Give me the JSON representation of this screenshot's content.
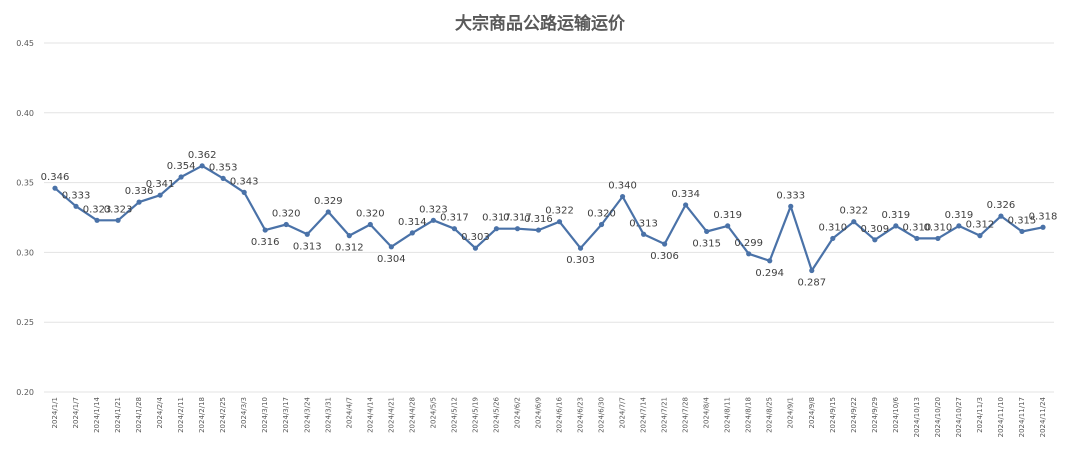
{
  "chart_data": {
    "type": "line",
    "title": "大宗商品公路运输运价",
    "xlabel": "",
    "ylabel": "",
    "ylim": [
      0.2,
      0.45
    ],
    "yticks": [
      "0.20",
      "0.25",
      "0.30",
      "0.35",
      "0.40",
      "0.45"
    ],
    "grid": true,
    "legend": "none",
    "color": "#4a72a8",
    "categories": [
      "2024/1/1",
      "2024/1/7",
      "2024/1/14",
      "2024/1/21",
      "2024/1/28",
      "2024/2/4",
      "2024/2/11",
      "2024/2/18",
      "2024/2/25",
      "2024/3/3",
      "2024/3/10",
      "2024/3/17",
      "2024/3/24",
      "2024/3/31",
      "2024/4/7",
      "2024/4/14",
      "2024/4/21",
      "2024/4/28",
      "2024/5/5",
      "2024/5/12",
      "2024/5/19",
      "2024/5/26",
      "2024/6/2",
      "2024/6/9",
      "2024/6/16",
      "2024/6/23",
      "2024/6/30",
      "2024/7/7",
      "2024/7/14",
      "2024/7/21",
      "2024/7/28",
      "2024/8/4",
      "2024/8/11",
      "2024/8/18",
      "2024/8/25",
      "2024/9/1",
      "2024/9/8",
      "2024/9/15",
      "2024/9/22",
      "2024/9/29",
      "2024/10/6",
      "2024/10/13",
      "2024/10/20",
      "2024/10/27",
      "2024/11/3",
      "2024/11/10",
      "2024/11/17",
      "2024/11/24"
    ],
    "values": [
      0.346,
      0.333,
      0.323,
      0.323,
      0.336,
      0.341,
      0.354,
      0.362,
      0.353,
      0.343,
      0.316,
      0.32,
      0.313,
      0.329,
      0.312,
      0.32,
      0.304,
      0.314,
      0.323,
      0.317,
      0.303,
      0.317,
      0.317,
      0.316,
      0.322,
      0.303,
      0.32,
      0.34,
      0.313,
      0.306,
      0.334,
      0.315,
      0.319,
      0.299,
      0.294,
      0.333,
      0.287,
      0.31,
      0.322,
      0.309,
      0.319,
      0.31,
      0.31,
      0.319,
      0.312,
      0.326,
      0.315,
      0.318
    ],
    "data_labels": [
      "0.346",
      "0.333",
      "0.323",
      "0.323",
      "0.336",
      "0.341",
      "0.354",
      "0.362",
      "0.353",
      "0.343",
      "0.316",
      "0.320",
      "0.313",
      "0.329",
      "0.312",
      "0.320",
      "0.304",
      "0.314",
      "0.323",
      "0.317",
      "0.303",
      "0.317",
      "0.317",
      "0.316",
      "0.322",
      "0.303",
      "0.320",
      "0.340",
      "0.313",
      "0.306",
      "0.334",
      "0.315",
      "0.319",
      "0.299",
      "0.294",
      "0.333",
      "0.287",
      "0.310",
      "0.322",
      "0.309",
      "0.319",
      "0.310",
      "0.310",
      "0.319",
      "0.312",
      "0.326",
      "0.315",
      "0.318"
    ]
  }
}
